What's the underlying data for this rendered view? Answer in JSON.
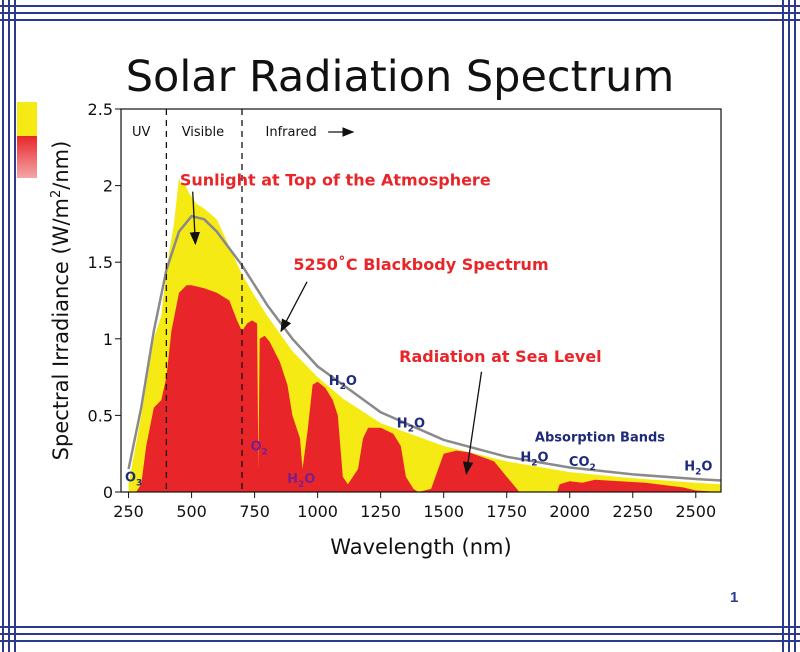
{
  "page": {
    "title": "Solar Radiation Spectrum",
    "page_number": "1"
  },
  "colors": {
    "frame": "#2b3a8c",
    "top_atmosphere": "#f5ea14",
    "sea_level": "#e8262a",
    "blackbody": "#8a8a8a",
    "annotation": "#e8262a",
    "absorption": "#1f2a7a"
  },
  "chart_data": {
    "type": "area",
    "title": "Solar Radiation Spectrum",
    "xlabel": "Wavelength (nm)",
    "ylabel_prefix": "Spectral Irradiance (W/m",
    "ylabel_sup": "2",
    "ylabel_suffix": "/nm)",
    "xlim": [
      220,
      2600
    ],
    "ylim": [
      0,
      2.5
    ],
    "xticks": [
      250,
      500,
      750,
      1000,
      1250,
      1500,
      1750,
      2000,
      2250,
      2500
    ],
    "yticks": [
      0,
      0.5,
      1,
      1.5,
      2,
      2.5
    ],
    "ytick_labels": [
      "0",
      "0.5",
      "1",
      "1.5",
      "2",
      "2.5"
    ],
    "regions": [
      {
        "label": "UV",
        "x": 300
      },
      {
        "label": "Visible",
        "x": 545
      },
      {
        "label": "Infrared",
        "x": 895
      }
    ],
    "region_boundaries": [
      400,
      700
    ],
    "series": [
      {
        "name": "Sunlight at Top of the Atmosphere",
        "x": [
          250,
          300,
          350,
          380,
          400,
          430,
          450,
          460,
          470,
          490,
          520,
          550,
          600,
          650,
          700,
          750,
          800,
          900,
          1000,
          1100,
          1250,
          1500,
          1750,
          2000,
          2250,
          2500,
          2600
        ],
        "y": [
          0.05,
          0.5,
          1.0,
          1.15,
          1.45,
          1.75,
          2.05,
          2.0,
          2.02,
          1.95,
          1.88,
          1.85,
          1.78,
          1.6,
          1.42,
          1.28,
          1.15,
          0.92,
          0.75,
          0.61,
          0.45,
          0.3,
          0.2,
          0.13,
          0.09,
          0.06,
          0.05
        ]
      },
      {
        "name": "5250˚C Blackbody Spectrum",
        "x": [
          250,
          300,
          350,
          400,
          450,
          500,
          550,
          600,
          700,
          800,
          900,
          1000,
          1250,
          1500,
          1750,
          2000,
          2250,
          2500,
          2600
        ],
        "y": [
          0.15,
          0.55,
          1.05,
          1.45,
          1.7,
          1.8,
          1.78,
          1.7,
          1.48,
          1.22,
          1.0,
          0.82,
          0.52,
          0.34,
          0.23,
          0.16,
          0.115,
          0.085,
          0.075
        ]
      },
      {
        "name": "Radiation at Sea Level",
        "x": [
          280,
          300,
          320,
          350,
          380,
          400,
          420,
          450,
          480,
          500,
          550,
          600,
          650,
          680,
          700,
          720,
          740,
          760,
          765,
          770,
          790,
          810,
          850,
          880,
          900,
          930,
          940,
          960,
          980,
          1000,
          1030,
          1060,
          1080,
          1100,
          1120,
          1140,
          1160,
          1180,
          1200,
          1250,
          1300,
          1330,
          1350,
          1380,
          1400,
          1450,
          1500,
          1550,
          1600,
          1650,
          1700,
          1750,
          1790,
          1800,
          1850,
          1900,
          1950,
          1960,
          2000,
          2050,
          2100,
          2200,
          2300,
          2400,
          2450,
          2500,
          2600
        ],
        "y": [
          0,
          0.05,
          0.3,
          0.55,
          0.6,
          0.75,
          1.05,
          1.3,
          1.35,
          1.35,
          1.33,
          1.3,
          1.25,
          1.12,
          1.05,
          1.1,
          1.12,
          1.1,
          0.15,
          1.0,
          1.02,
          0.98,
          0.85,
          0.7,
          0.5,
          0.35,
          0.15,
          0.4,
          0.7,
          0.72,
          0.68,
          0.6,
          0.5,
          0.1,
          0.05,
          0.1,
          0.15,
          0.35,
          0.42,
          0.42,
          0.38,
          0.3,
          0.1,
          0.02,
          0,
          0.02,
          0.25,
          0.27,
          0.26,
          0.23,
          0.2,
          0.1,
          0.02,
          0,
          0,
          0,
          0,
          0.05,
          0.07,
          0.06,
          0.08,
          0.07,
          0.06,
          0.04,
          0.03,
          0.01,
          0
        ]
      }
    ],
    "annotations": [
      {
        "text": "Sunlight at Top of the Atmosphere",
        "style": "red",
        "x": 1070,
        "y": 2.0,
        "arrow_to": [
          515,
          1.62
        ]
      },
      {
        "text": "5250˚C Blackbody Spectrum",
        "style": "red",
        "x": 1410,
        "y": 1.45,
        "arrow_to": [
          855,
          1.05
        ]
      },
      {
        "text": "Radiation at Sea Level",
        "style": "red",
        "x": 1725,
        "y": 0.85,
        "arrow_to": [
          1590,
          0.12
        ]
      },
      {
        "text": "Absorption Bands",
        "style": "blue",
        "x": 2120,
        "y": 0.33
      }
    ],
    "absorbers": [
      {
        "mol": "O",
        "sub": "3",
        "x": 270,
        "y": 0.07,
        "color": "blue"
      },
      {
        "mol": "O",
        "sub": "2",
        "x": 768,
        "y": 0.27,
        "color": "purple"
      },
      {
        "mol": "H",
        "sub": "2",
        "suffix": "O",
        "x": 935,
        "y": 0.06,
        "color": "purple"
      },
      {
        "mol": "H",
        "sub": "2",
        "suffix": "O",
        "x": 1100,
        "y": 0.7,
        "color": "blue"
      },
      {
        "mol": "H",
        "sub": "2",
        "suffix": "O",
        "x": 1370,
        "y": 0.42,
        "color": "blue"
      },
      {
        "mol": "H",
        "sub": "2",
        "suffix": "O",
        "x": 1860,
        "y": 0.2,
        "color": "blue"
      },
      {
        "mol": "CO",
        "sub": "2",
        "x": 2050,
        "y": 0.17,
        "color": "blue"
      },
      {
        "mol": "H",
        "sub": "2",
        "suffix": "O",
        "x": 2510,
        "y": 0.14,
        "color": "blue"
      }
    ]
  }
}
